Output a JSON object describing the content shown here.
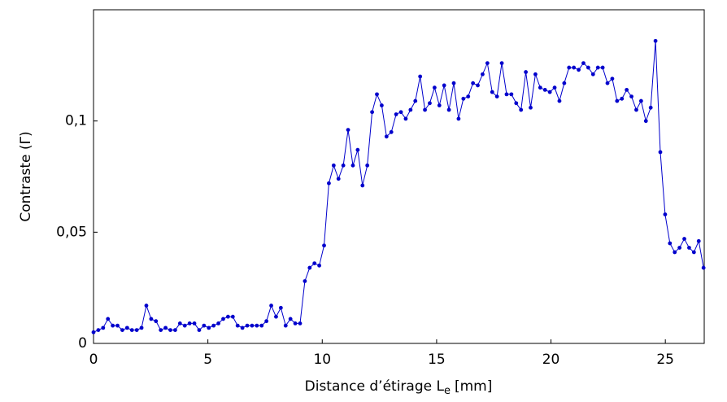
{
  "chart_data": {
    "type": "line",
    "xlabel": "Distance d’étirage L",
    "xlabel_sub": "e",
    "xlabel_end": "[mm]",
    "ylabel": "Contraste (Γ)",
    "color": "#0000cc",
    "xlim": [
      0,
      26.7
    ],
    "xticks": [
      0,
      5,
      10,
      15,
      20,
      25
    ],
    "ylim": [
      0,
      0.15
    ],
    "yticks": [
      0,
      {
        "value": 0.05,
        "label": "0,05"
      },
      {
        "value": 0.1,
        "label": "0,1"
      }
    ],
    "x": [
      0,
      0.21,
      0.42,
      0.63,
      0.84,
      1.05,
      1.26,
      1.47,
      1.68,
      1.89,
      2.1,
      2.31,
      2.52,
      2.73,
      2.94,
      3.15,
      3.36,
      3.57,
      3.78,
      3.99,
      4.2,
      4.41,
      4.62,
      4.83,
      5.04,
      5.25,
      5.46,
      5.67,
      5.88,
      6.09,
      6.3,
      6.51,
      6.72,
      6.93,
      7.14,
      7.35,
      7.56,
      7.77,
      7.98,
      8.19,
      8.4,
      8.61,
      8.82,
      9.03,
      9.24,
      9.45,
      9.66,
      9.87,
      10.08,
      10.29,
      10.5,
      10.71,
      10.92,
      11.13,
      11.34,
      11.55,
      11.76,
      11.97,
      12.18,
      12.39,
      12.6,
      12.81,
      13.02,
      13.23,
      13.44,
      13.65,
      13.86,
      14.07,
      14.28,
      14.49,
      14.7,
      14.91,
      15.12,
      15.33,
      15.54,
      15.75,
      15.96,
      16.17,
      16.38,
      16.59,
      16.8,
      17.01,
      17.22,
      17.43,
      17.64,
      17.85,
      18.06,
      18.27,
      18.48,
      18.69,
      18.9,
      19.11,
      19.32,
      19.53,
      19.74,
      19.95,
      20.16,
      20.37,
      20.58,
      20.79,
      21.0,
      21.21,
      21.42,
      21.63,
      21.84,
      22.05,
      22.26,
      22.47,
      22.68,
      22.89,
      23.1,
      23.31,
      23.52,
      23.73,
      23.94,
      24.15,
      24.36,
      24.57,
      24.78,
      24.99,
      25.2,
      25.41,
      25.62,
      25.83,
      26.04,
      26.25,
      26.46,
      26.67
    ],
    "values": [
      0.005,
      0.006,
      0.007,
      0.011,
      0.008,
      0.008,
      0.006,
      0.007,
      0.006,
      0.006,
      0.007,
      0.017,
      0.011,
      0.01,
      0.006,
      0.007,
      0.006,
      0.006,
      0.009,
      0.008,
      0.009,
      0.009,
      0.006,
      0.008,
      0.007,
      0.008,
      0.009,
      0.011,
      0.012,
      0.012,
      0.008,
      0.007,
      0.008,
      0.008,
      0.008,
      0.008,
      0.01,
      0.017,
      0.012,
      0.016,
      0.008,
      0.011,
      0.009,
      0.009,
      0.028,
      0.034,
      0.036,
      0.035,
      0.044,
      0.072,
      0.08,
      0.074,
      0.08,
      0.096,
      0.08,
      0.087,
      0.071,
      0.08,
      0.104,
      0.112,
      0.107,
      0.093,
      0.095,
      0.103,
      0.104,
      0.101,
      0.105,
      0.109,
      0.12,
      0.105,
      0.108,
      0.115,
      0.107,
      0.116,
      0.105,
      0.117,
      0.101,
      0.11,
      0.111,
      0.117,
      0.116,
      0.121,
      0.126,
      0.113,
      0.111,
      0.126,
      0.112,
      0.112,
      0.108,
      0.105,
      0.122,
      0.106,
      0.121,
      0.115,
      0.114,
      0.113,
      0.115,
      0.109,
      0.117,
      0.124,
      0.124,
      0.123,
      0.126,
      0.124,
      0.121,
      0.124,
      0.124,
      0.117,
      0.119,
      0.109,
      0.11,
      0.114,
      0.111,
      0.105,
      0.109,
      0.1,
      0.106,
      0.136,
      0.086,
      0.058,
      0.045,
      0.041,
      0.043,
      0.047,
      0.043,
      0.041,
      0.046,
      0.034
    ]
  }
}
